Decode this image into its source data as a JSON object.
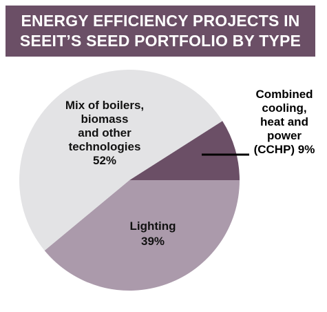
{
  "title": {
    "line1": "ENERGY EFFICIENCY PROJECTS IN",
    "line2": "SEEIT’S SEED PORTFOLIO BY TYPE"
  },
  "chart_data": {
    "type": "pie",
    "title": "ENERGY EFFICIENCY PROJECTS IN SEEIT’S SEED PORTFOLIO BY TYPE",
    "slices": [
      {
        "name": "Combined cooling, heat and power (CCHP)",
        "value": 9,
        "label_lines": [
          "Combined",
          "cooling,",
          "heat and",
          "power",
          "(CCHP) 9%"
        ],
        "color": "#6b4f66"
      },
      {
        "name": "Lighting",
        "value": 39,
        "label_lines": [
          "Lighting",
          "39%"
        ],
        "color": "#ab9aab"
      },
      {
        "name": "Mix of boilers, biomass and other technologies",
        "value": 52,
        "label_lines": [
          "Mix of boilers,",
          "biomass",
          "and other",
          "technologies",
          "52%"
        ],
        "color": "#e3e3e5"
      }
    ]
  }
}
